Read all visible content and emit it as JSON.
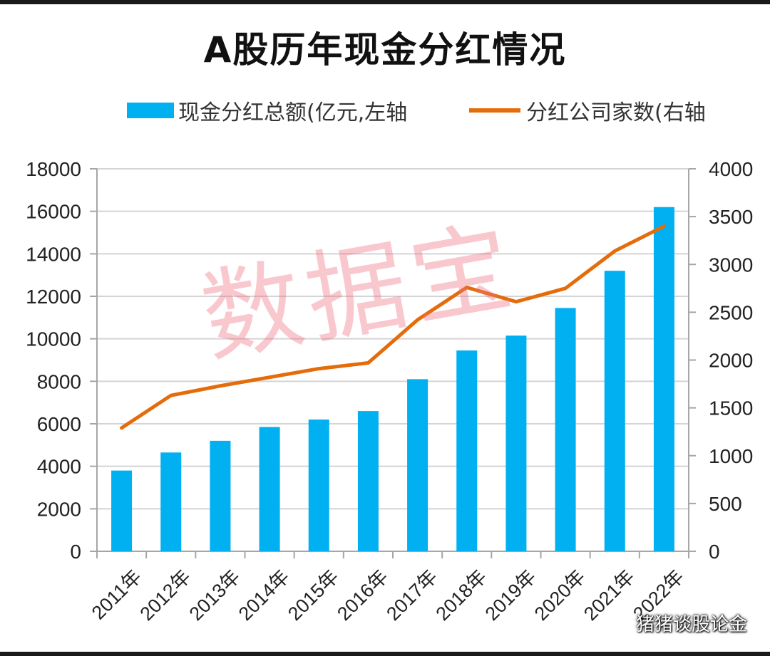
{
  "chart_data": {
    "type": "bar",
    "title": "A股历年现金分红情况",
    "categories": [
      "2011年",
      "2012年",
      "2013年",
      "2014年",
      "2015年",
      "2016年",
      "2017年",
      "2018年",
      "2019年",
      "2020年",
      "2021年",
      "2022年"
    ],
    "series": [
      {
        "name": "现金分红总额(亿元,左轴",
        "type": "bar",
        "axis": "left",
        "color": "#00b0f0",
        "values": [
          3800,
          4650,
          5200,
          5850,
          6200,
          6600,
          8100,
          9450,
          10150,
          11450,
          13200,
          16200
        ]
      },
      {
        "name": "分红公司家数(右轴",
        "type": "line",
        "axis": "right",
        "color": "#e46c0a",
        "values": [
          1290,
          1630,
          1730,
          1820,
          1910,
          1970,
          2420,
          2760,
          2610,
          2750,
          3140,
          3400
        ]
      }
    ],
    "y_left": {
      "range": [
        0,
        18000
      ],
      "ticks": [
        0,
        2000,
        4000,
        6000,
        8000,
        10000,
        12000,
        14000,
        16000,
        18000
      ]
    },
    "y_right": {
      "range": [
        0,
        4000
      ],
      "ticks": [
        0,
        500,
        1000,
        1500,
        2000,
        2500,
        3000,
        3500,
        4000
      ]
    },
    "grid": true,
    "legend_position": "top"
  },
  "watermark": "数据宝",
  "brand": "猪猪谈股论金"
}
